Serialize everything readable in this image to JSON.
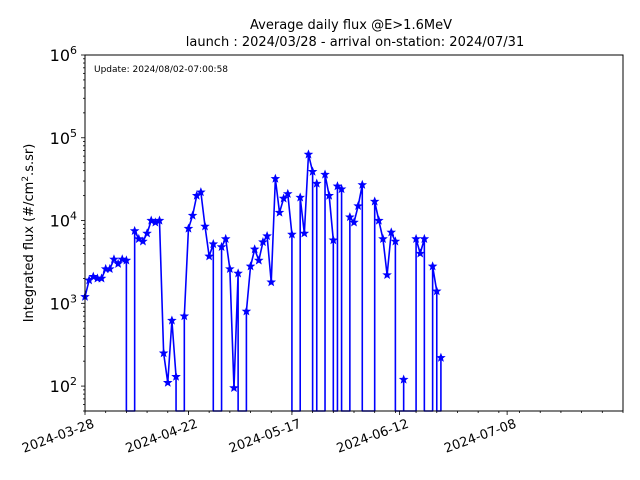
{
  "chart_data": {
    "type": "line",
    "title": "Average daily flux @E>1.6MeV",
    "subtitle": "launch : 2024/03/28 - arrival on-station: 2024/07/31",
    "xlabel": "",
    "ylabel_parts": [
      "Integrated flux (#/cm",
      "2",
      ".s.sr)"
    ],
    "annotation": "Update: 2024/08/02-07:00:58",
    "x_scale": "time",
    "y_scale": "log",
    "xlim": [
      "2024-03-28",
      "2024-08-05"
    ],
    "ylim": [
      50,
      1000000
    ],
    "x_ticks": [
      "2024-03-28",
      "2024-04-22",
      "2024-05-17",
      "2024-06-12",
      "2024-07-08"
    ],
    "y_ticks": [
      {
        "value": 100,
        "base": "10",
        "exp": "2"
      },
      {
        "value": 1000,
        "base": "10",
        "exp": "3"
      },
      {
        "value": 10000,
        "base": "10",
        "exp": "4"
      },
      {
        "value": 100000,
        "base": "10",
        "exp": "5"
      },
      {
        "value": 1000000,
        "base": "10",
        "exp": "6"
      }
    ],
    "series": [
      {
        "color": "#0000ff",
        "marker": "star",
        "points": [
          [
            "2024-03-28",
            1200
          ],
          [
            "2024-03-29",
            1900
          ],
          [
            "2024-03-30",
            2100
          ],
          [
            "2024-03-31",
            2000
          ],
          [
            "2024-04-01",
            2000
          ],
          [
            "2024-04-02",
            2600
          ],
          [
            "2024-04-03",
            2600
          ],
          [
            "2024-04-04",
            3400
          ],
          [
            "2024-04-05",
            3000
          ],
          [
            "2024-04-06",
            3400
          ],
          [
            "2024-04-07",
            3300
          ],
          [
            "2024-04-07",
            50
          ],
          [
            "2024-04-09",
            50
          ],
          [
            "2024-04-09",
            7500
          ],
          [
            "2024-04-10",
            6000
          ],
          [
            "2024-04-11",
            5600
          ],
          [
            "2024-04-12",
            7000
          ],
          [
            "2024-04-13",
            10000
          ],
          [
            "2024-04-14",
            9500
          ],
          [
            "2024-04-15",
            10000
          ],
          [
            "2024-04-16",
            250
          ],
          [
            "2024-04-17",
            110
          ],
          [
            "2024-04-18",
            620
          ],
          [
            "2024-04-19",
            130
          ],
          [
            "2024-04-19",
            50
          ],
          [
            "2024-04-21",
            50
          ],
          [
            "2024-04-21",
            700
          ],
          [
            "2024-04-22",
            8000
          ],
          [
            "2024-04-23",
            11500
          ],
          [
            "2024-04-24",
            20000
          ],
          [
            "2024-04-25",
            22000
          ],
          [
            "2024-04-26",
            8500
          ],
          [
            "2024-04-27",
            3700
          ],
          [
            "2024-04-28",
            5200
          ],
          [
            "2024-04-28",
            50
          ],
          [
            "2024-04-30",
            50
          ],
          [
            "2024-04-30",
            4800
          ],
          [
            "2024-05-01",
            6000
          ],
          [
            "2024-05-02",
            2600
          ],
          [
            "2024-05-03",
            95
          ],
          [
            "2024-05-04",
            2300
          ],
          [
            "2024-05-04",
            50
          ],
          [
            "2024-05-06",
            50
          ],
          [
            "2024-05-06",
            800
          ],
          [
            "2024-05-07",
            2800
          ],
          [
            "2024-05-08",
            4500
          ],
          [
            "2024-05-09",
            3300
          ],
          [
            "2024-05-10",
            5500
          ],
          [
            "2024-05-11",
            6500
          ],
          [
            "2024-05-12",
            1800
          ],
          [
            "2024-05-13",
            32000
          ],
          [
            "2024-05-14",
            12500
          ],
          [
            "2024-05-15",
            18500
          ],
          [
            "2024-05-16",
            21000
          ],
          [
            "2024-05-17",
            6800
          ],
          [
            "2024-05-17",
            50
          ],
          [
            "2024-05-19",
            50
          ],
          [
            "2024-05-19",
            19000
          ],
          [
            "2024-05-20",
            7000
          ],
          [
            "2024-05-21",
            63000
          ],
          [
            "2024-05-22",
            39000
          ],
          [
            "2024-05-22",
            50
          ],
          [
            "2024-05-23",
            50
          ],
          [
            "2024-05-23",
            28000
          ],
          [
            "2024-05-23",
            50
          ],
          [
            "2024-05-25",
            50
          ],
          [
            "2024-05-25",
            36000
          ],
          [
            "2024-05-26",
            20000
          ],
          [
            "2024-05-27",
            5800
          ],
          [
            "2024-05-27",
            50
          ],
          [
            "2024-05-28",
            50
          ],
          [
            "2024-05-28",
            26000
          ],
          [
            "2024-05-29",
            24000
          ],
          [
            "2024-05-29",
            50
          ],
          [
            "2024-05-31",
            50
          ],
          [
            "2024-05-31",
            11000
          ],
          [
            "2024-06-01",
            9500
          ],
          [
            "2024-06-02",
            15000
          ],
          [
            "2024-06-03",
            27000
          ],
          [
            "2024-06-03",
            50
          ],
          [
            "2024-06-06",
            50
          ],
          [
            "2024-06-06",
            17000
          ],
          [
            "2024-06-07",
            10000
          ],
          [
            "2024-06-08",
            6000
          ],
          [
            "2024-06-09",
            2200
          ],
          [
            "2024-06-10",
            7200
          ],
          [
            "2024-06-11",
            5600
          ],
          [
            "2024-06-11",
            50
          ],
          [
            "2024-06-13",
            50
          ],
          [
            "2024-06-13",
            120
          ],
          [
            "2024-06-13",
            50
          ],
          [
            "2024-06-16",
            50
          ],
          [
            "2024-06-16",
            6000
          ],
          [
            "2024-06-17",
            4000
          ],
          [
            "2024-06-18",
            6000
          ],
          [
            "2024-06-18",
            50
          ],
          [
            "2024-06-20",
            50
          ],
          [
            "2024-06-20",
            2800
          ],
          [
            "2024-06-21",
            1400
          ],
          [
            "2024-06-21",
            50
          ],
          [
            "2024-06-22",
            50
          ],
          [
            "2024-06-22",
            220
          ]
        ]
      }
    ]
  }
}
